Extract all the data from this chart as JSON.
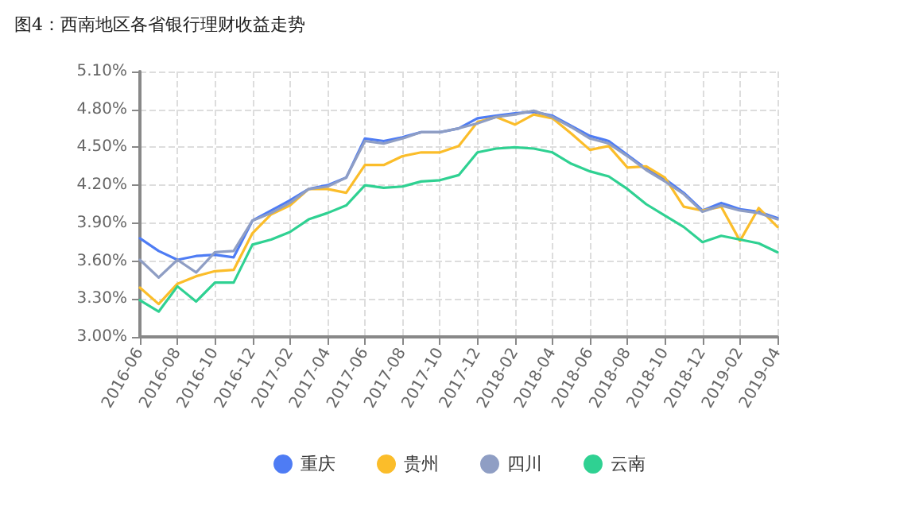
{
  "chart_data": {
    "type": "line",
    "title": "图4：西南地区各省银行理财收益走势",
    "categories": [
      "2016-06",
      null,
      "2016-08",
      null,
      "2016-10",
      null,
      "2016-12",
      null,
      "2017-02",
      null,
      "2017-04",
      null,
      "2017-06",
      null,
      "2017-08",
      null,
      "2017-10",
      null,
      "2017-12",
      null,
      "2018-02",
      null,
      "2018-04",
      null,
      "2018-06",
      null,
      "2018-08",
      null,
      "2018-10",
      null,
      "2018-12",
      null,
      "2019-02",
      null,
      "2019-04"
    ],
    "series": [
      {
        "name": "重庆",
        "color": "#4e7cf4",
        "values": [
          3.78,
          3.68,
          3.61,
          3.64,
          3.65,
          3.63,
          3.92,
          4.0,
          4.08,
          4.17,
          4.2,
          4.26,
          4.57,
          4.55,
          4.58,
          4.62,
          4.62,
          4.65,
          4.73,
          4.75,
          4.77,
          4.78,
          4.75,
          4.67,
          4.59,
          4.55,
          4.44,
          4.33,
          4.25,
          4.14,
          4.0,
          4.06,
          4.01,
          3.99,
          3.94
        ]
      },
      {
        "name": "贵州",
        "color": "#fbbd2a",
        "values": [
          3.39,
          3.26,
          3.42,
          3.48,
          3.52,
          3.53,
          3.82,
          3.97,
          4.04,
          4.17,
          4.17,
          4.14,
          4.36,
          4.36,
          4.43,
          4.46,
          4.46,
          4.51,
          4.7,
          4.74,
          4.68,
          4.76,
          4.73,
          4.61,
          4.48,
          4.51,
          4.34,
          4.35,
          4.26,
          4.03,
          4.0,
          4.03,
          3.76,
          4.02,
          3.87
        ]
      },
      {
        "name": "四川",
        "color": "#8f9ec4",
        "values": [
          3.61,
          3.47,
          3.61,
          3.51,
          3.67,
          3.68,
          3.92,
          3.98,
          4.06,
          4.17,
          4.19,
          4.26,
          4.55,
          4.53,
          4.57,
          4.62,
          4.62,
          4.65,
          4.69,
          4.74,
          4.76,
          4.79,
          4.74,
          4.66,
          4.57,
          4.53,
          4.43,
          4.32,
          4.23,
          4.13,
          3.99,
          4.04,
          4.0,
          3.98,
          3.93
        ]
      },
      {
        "name": "云南",
        "color": "#2fd192",
        "values": [
          3.29,
          3.2,
          3.4,
          3.28,
          3.43,
          3.43,
          3.73,
          3.77,
          3.83,
          3.93,
          3.98,
          4.04,
          4.2,
          4.18,
          4.19,
          4.23,
          4.24,
          4.28,
          4.46,
          4.49,
          4.5,
          4.49,
          4.46,
          4.37,
          4.31,
          4.27,
          4.17,
          4.05,
          3.96,
          3.87,
          3.75,
          3.8,
          3.77,
          3.74,
          3.67
        ]
      }
    ],
    "ylim": [
      3.0,
      5.1
    ],
    "yticks": [
      {
        "value": 3.0,
        "label": "3.00%"
      },
      {
        "value": 3.3,
        "label": "3.30%"
      },
      {
        "value": 3.6,
        "label": "3.60%"
      },
      {
        "value": 3.9,
        "label": "3.90%"
      },
      {
        "value": 4.2,
        "label": "4.20%"
      },
      {
        "value": 4.5,
        "label": "4.50%"
      },
      {
        "value": 4.8,
        "label": "4.80%"
      },
      {
        "value": 5.1,
        "label": "5.10%"
      }
    ],
    "grid": true,
    "legend": "bottom",
    "marker": "none",
    "line_style": "solid"
  }
}
